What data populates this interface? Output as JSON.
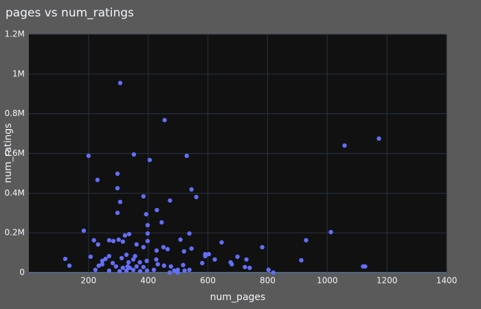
{
  "chart_data": {
    "type": "scatter",
    "title": "pages vs num_ratings",
    "x_label": "num_pages",
    "y_label": "num_ratings",
    "color": "#636efa",
    "grid": true,
    "xlim": [
      0,
      1400
    ],
    "xticks": [
      200,
      400,
      600,
      800,
      1000,
      1200,
      1400
    ],
    "ylim": [
      0,
      1200000
    ],
    "yticks": [
      0,
      {
        "value": 200000,
        "label": "0.2M"
      },
      {
        "value": 400000,
        "label": "0.4M"
      },
      {
        "value": 600000,
        "label": "0.6M"
      },
      {
        "value": 800000,
        "label": "0.8M"
      },
      {
        "value": 1000000,
        "label": "1M"
      },
      {
        "value": 1200000,
        "label": "1.2M"
      }
    ],
    "x": [
      122,
      136,
      200,
      306,
      455,
      352,
      405,
      529,
      297,
      230,
      297,
      545,
      306,
      384,
      561,
      473,
      429,
      393,
      297,
      445,
      398,
      184,
      538,
      398,
      336,
      322,
      218,
      508,
      301,
      269,
      283,
      398,
      232,
      315,
      646,
      929,
      1012,
      1058,
      1173,
      782,
      384,
      451,
      361,
      545,
      520,
      465,
      428,
      591,
      603,
      591,
      699,
      356,
      269,
      207,
      257,
      623,
      729,
      913,
      372,
      676,
      581,
      432,
      246,
      331,
      680,
      724,
      740,
      803,
      1120,
      1127,
      819,
      499,
      522,
      499,
      472,
      487,
      223,
      269,
      304,
      327,
      350,
      373,
      396,
      419,
      338,
      315,
      292,
      361,
      384,
      281,
      334,
      350,
      311,
      327,
      246,
      234,
      453,
      476,
      538,
      517,
      427,
      395
    ],
    "values": [
      69000,
      35000,
      588000,
      955000,
      768000,
      595000,
      567000,
      588000,
      498000,
      467000,
      425000,
      419000,
      356000,
      384000,
      381000,
      363000,
      315000,
      294000,
      301000,
      253000,
      239000,
      211000,
      197000,
      197000,
      194000,
      187000,
      163000,
      166000,
      166000,
      163000,
      159000,
      159000,
      142000,
      156000,
      152000,
      163000,
      204000,
      640000,
      675000,
      128000,
      128000,
      128000,
      142000,
      121000,
      107000,
      118000,
      111000,
      93000,
      93000,
      83000,
      80000,
      83000,
      83000,
      80000,
      69000,
      66000,
      66000,
      62000,
      52000,
      52000,
      48000,
      42000,
      42000,
      31000,
      42000,
      28000,
      24000,
      14000,
      31000,
      31000,
      0,
      14000,
      10000,
      0,
      0,
      10000,
      14000,
      10000,
      7000,
      10000,
      14000,
      7000,
      10000,
      14000,
      24000,
      24000,
      31000,
      31000,
      28000,
      48000,
      52000,
      66000,
      73000,
      90000,
      59000,
      35000,
      35000,
      31000,
      14000,
      38000,
      66000,
      59000
    ]
  }
}
